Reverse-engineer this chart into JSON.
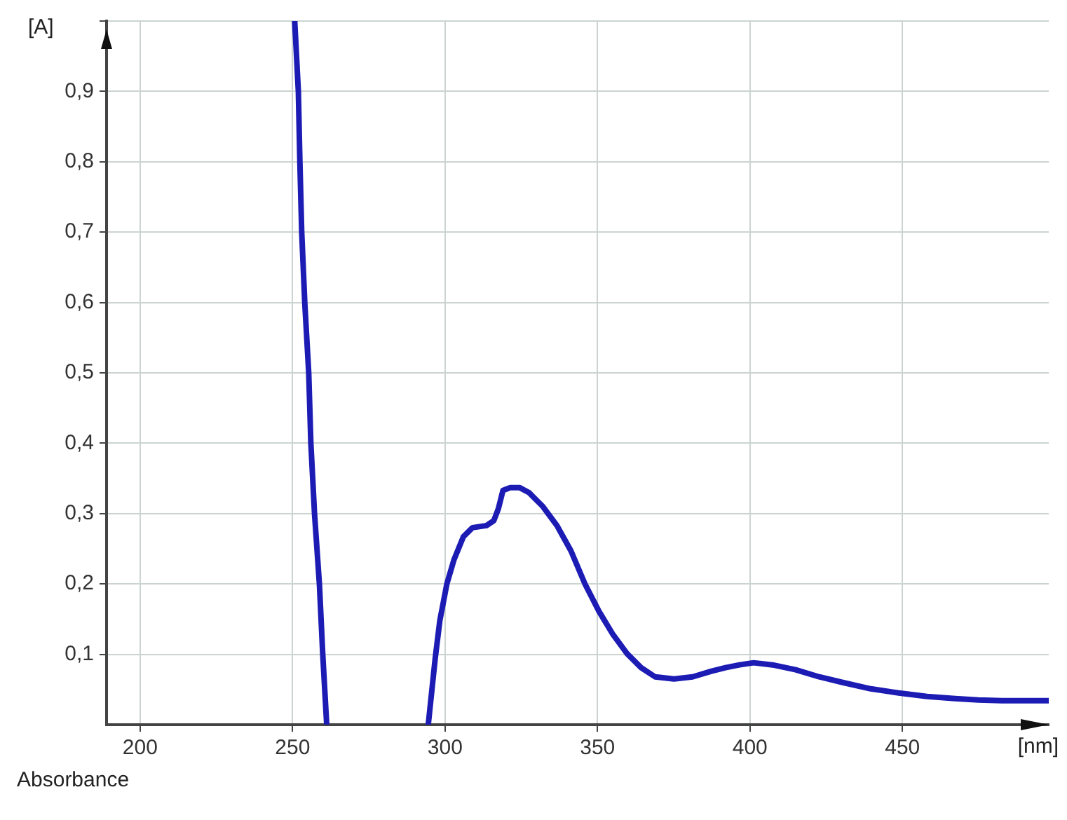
{
  "chart_data": {
    "type": "line",
    "xlabel": "[nm]",
    "ylabel": "[A]",
    "annotations": [
      "Absorbance"
    ],
    "x": [
      250.7,
      251.9,
      252.4,
      253.0,
      254.0,
      255.3,
      256.0,
      257.2,
      258.8,
      259.9,
      261.2,
      278,
      294.5,
      296.8,
      298.3,
      300.6,
      302.9,
      306.0,
      309.0,
      313.6,
      316.0,
      317.5,
      319.0,
      321.4,
      324.4,
      327.5,
      332.1,
      336.7,
      341.3,
      345.9,
      350.5,
      355.1,
      359.7,
      364.3,
      368.9,
      375.1,
      381.2,
      387.4,
      392.0,
      396.6,
      401.2,
      407.4,
      415.0,
      422.7,
      430.4,
      439.6,
      448.8,
      458.1,
      467.3,
      474.9,
      482.6,
      498.0
    ],
    "values": [
      1.0,
      0.9,
      0.8,
      0.7,
      0.6,
      0.5,
      0.4,
      0.3,
      0.2,
      0.1,
      0.0,
      null,
      0.0,
      0.095,
      0.148,
      0.2,
      0.234,
      0.267,
      0.28,
      0.283,
      0.29,
      0.307,
      0.333,
      0.337,
      0.337,
      0.33,
      0.31,
      0.283,
      0.247,
      0.2,
      0.161,
      0.128,
      0.101,
      0.081,
      0.068,
      0.065,
      0.068,
      0.076,
      0.081,
      0.085,
      0.088,
      0.085,
      0.078,
      0.068,
      0.06,
      0.051,
      0.045,
      0.04,
      0.037,
      0.035,
      0.034,
      0.034
    ],
    "color": "#1c1cb4",
    "xlim": [
      189,
      498
    ],
    "ylim": [
      0,
      1
    ],
    "xticks": [
      200,
      250,
      300,
      350,
      400,
      450
    ],
    "yticks": [
      {
        "value": 0.1,
        "label": "0,1"
      },
      {
        "value": 0.2,
        "label": "0,2"
      },
      {
        "value": 0.3,
        "label": "0,3"
      },
      {
        "value": 0.4,
        "label": "0,4"
      },
      {
        "value": 0.5,
        "label": "0,5"
      },
      {
        "value": 0.6,
        "label": "0,6"
      },
      {
        "value": 0.7,
        "label": "0,7"
      },
      {
        "value": 0.8,
        "label": "0,8"
      },
      {
        "value": 0.9,
        "label": "0,9"
      },
      {
        "value": 1,
        "label": null
      }
    ],
    "grid": true
  }
}
